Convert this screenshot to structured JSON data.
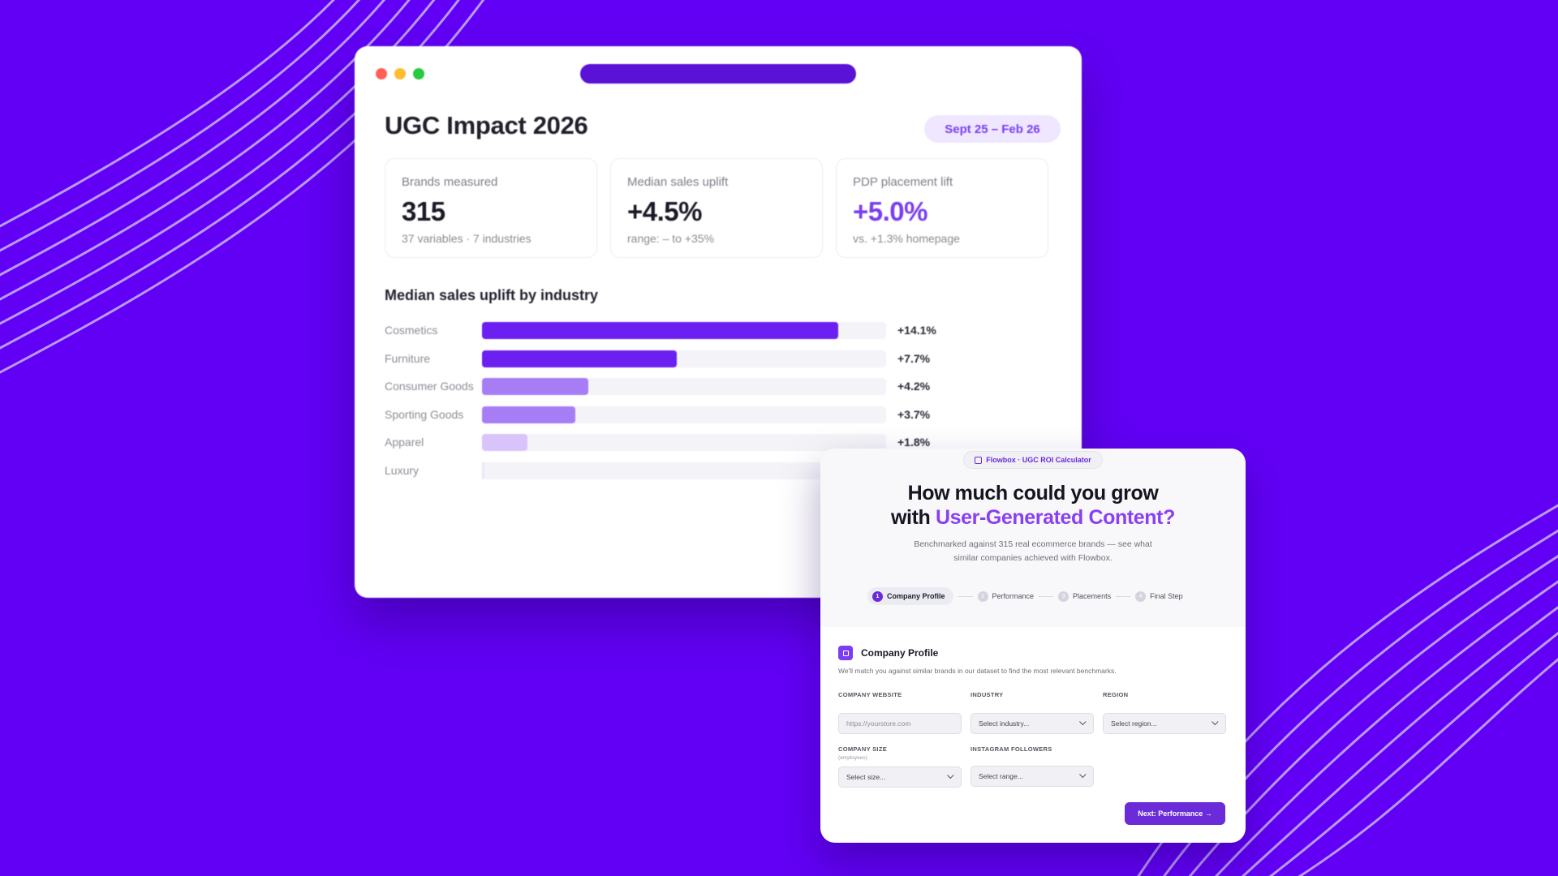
{
  "dashboard": {
    "title": "UGC Impact 2026",
    "date_range": "Sept 25 – Feb 26",
    "cards": [
      {
        "label": "Brands measured",
        "value": "315",
        "sub": "37 variables · 7 industries"
      },
      {
        "label": "Median sales uplift",
        "value": "+4.5%",
        "sub": "range: – to +35%"
      },
      {
        "label": "PDP placement lift",
        "value": "+5.0%",
        "sub": "vs. +1.3% homepage"
      }
    ],
    "chart_title": "Median sales uplift by industry",
    "colors": {
      "strong": "#6b1ff0",
      "medium": "#a77df5",
      "light": "#d8c4fb",
      "faint": "#ece4fc",
      "track": "#f4f4f8"
    }
  },
  "chart_data": {
    "type": "bar",
    "orientation": "horizontal",
    "title": "Median sales uplift by industry",
    "categories": [
      "Cosmetics",
      "Furniture",
      "Consumer Goods",
      "Sporting Goods",
      "Apparel",
      "Luxury"
    ],
    "values": [
      14.1,
      7.7,
      4.2,
      3.7,
      1.8,
      0.1
    ],
    "value_labels": [
      "+14.1%",
      "+7.7%",
      "+4.2%",
      "+3.7%",
      "+1.8%",
      ""
    ],
    "xlim": [
      0,
      16
    ]
  },
  "calculator": {
    "badge": "Flowbox · UGC ROI Calculator",
    "headline_line1": "How much could you grow",
    "headline_with": "with",
    "headline_accent": "User-Generated Content?",
    "subtext": "Benchmarked against 315 real ecommerce brands — see what similar companies achieved with Flowbox.",
    "steps": [
      {
        "num": "1",
        "label": "Company Profile"
      },
      {
        "num": "2",
        "label": "Performance"
      },
      {
        "num": "3",
        "label": "Placements"
      },
      {
        "num": "4",
        "label": "Final Step"
      }
    ],
    "section_title": "Company Profile",
    "section_desc": "We'll match you against similar brands in our dataset to find the most relevant benchmarks.",
    "fields": {
      "website": {
        "label": "COMPANY WEBSITE",
        "placeholder": "https://yourstore.com"
      },
      "industry": {
        "label": "INDUSTRY",
        "value": "Select industry..."
      },
      "region": {
        "label": "REGION",
        "value": "Select region..."
      },
      "size": {
        "label": "COMPANY SIZE",
        "hint": "(employees)",
        "value": "Select size..."
      },
      "followers": {
        "label": "INSTAGRAM FOLLOWERS",
        "value": "Select range..."
      }
    },
    "next_button": "Next: Performance →"
  }
}
